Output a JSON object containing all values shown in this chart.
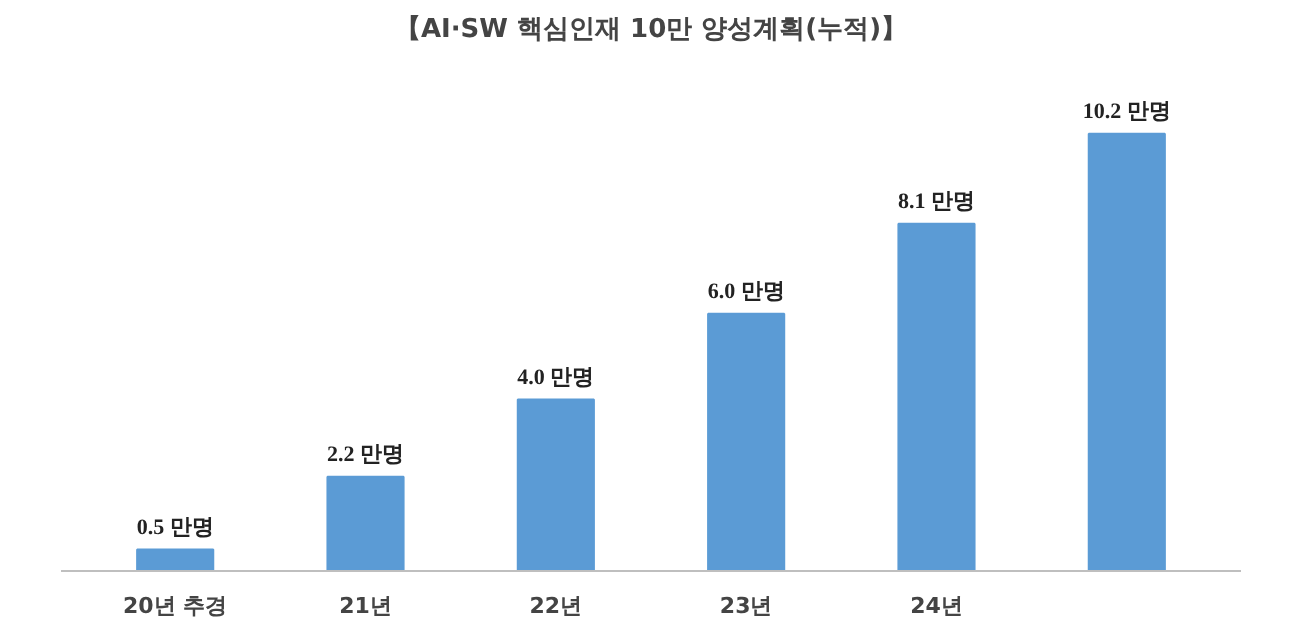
{
  "chart_data": {
    "type": "bar",
    "title": "【AI·SW 핵심인재 10만 양성계획(누적)】",
    "categories": [
      "20년 추경",
      "21년",
      "22년",
      "23년",
      "24년",
      null
    ],
    "values": [
      0.5,
      2.2,
      4.0,
      6.0,
      8.1,
      10.2
    ],
    "value_labels": [
      "0.5 만명",
      "2.2 만명",
      "4.0 만명",
      "6.0 만명",
      "8.1 만명",
      "10.2 만명"
    ],
    "color": "#5b9bd5",
    "grid": false
  }
}
